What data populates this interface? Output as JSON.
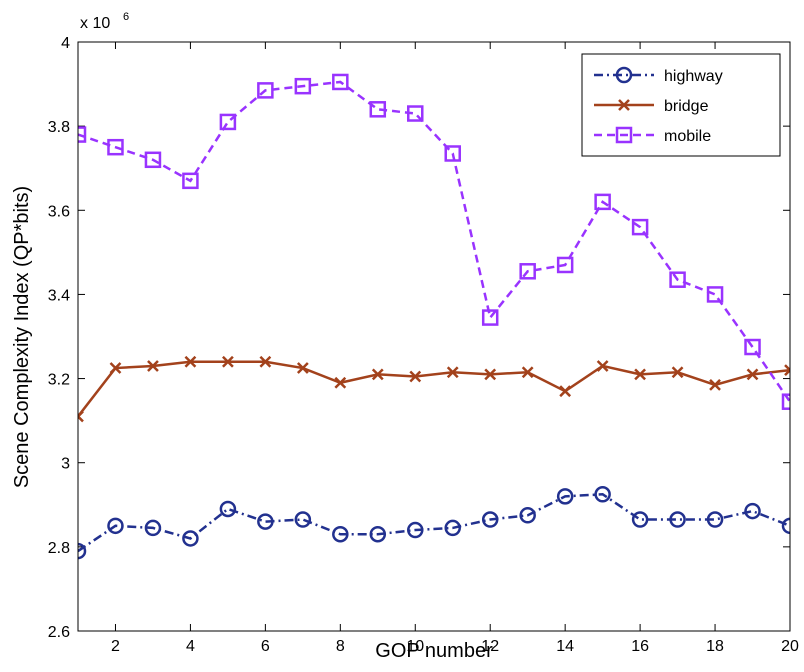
{
  "chart_data": {
    "type": "line",
    "xlabel": "GOP number",
    "ylabel": "Scene Complexity Index (QP*bits)",
    "y_multiplier": {
      "base": "x 10",
      "exponent": "6"
    },
    "x": [
      1,
      2,
      3,
      4,
      5,
      6,
      7,
      8,
      9,
      10,
      11,
      12,
      13,
      14,
      15,
      16,
      17,
      18,
      19,
      20
    ],
    "xlim": [
      1,
      20
    ],
    "xticks": [
      2,
      4,
      6,
      8,
      10,
      12,
      14,
      16,
      18,
      20
    ],
    "ylim": [
      2.6,
      4
    ],
    "yticks": [
      2.6,
      2.8,
      {
        "value": 3,
        "label": "3"
      },
      3.2,
      3.4,
      3.6,
      3.8,
      {
        "value": 4,
        "label": "4"
      }
    ],
    "grid": false,
    "legend": "upper right",
    "series": [
      {
        "name": "highway",
        "color": "#22318f",
        "linestyle": "dashdot",
        "marker": "circle",
        "values": [
          2.79,
          2.85,
          2.845,
          2.82,
          2.89,
          2.86,
          2.865,
          2.83,
          2.83,
          2.84,
          2.845,
          2.865,
          2.875,
          2.92,
          2.925,
          2.865,
          2.865,
          2.865,
          2.885,
          2.85
        ]
      },
      {
        "name": "bridge",
        "color": "#a3421c",
        "linestyle": "solid",
        "marker": "x",
        "values": [
          3.11,
          3.225,
          3.23,
          3.24,
          3.24,
          3.24,
          3.225,
          3.19,
          3.21,
          3.205,
          3.215,
          3.21,
          3.215,
          3.17,
          3.23,
          3.21,
          3.215,
          3.185,
          3.21,
          3.22
        ]
      },
      {
        "name": "mobile",
        "color": "#9933ff",
        "linestyle": "dashed",
        "marker": "square",
        "values": [
          3.78,
          3.75,
          3.72,
          3.67,
          3.81,
          3.885,
          3.895,
          3.905,
          3.84,
          3.83,
          3.735,
          3.345,
          3.455,
          3.47,
          3.62,
          3.56,
          3.435,
          3.4,
          3.275,
          3.145
        ]
      }
    ]
  }
}
